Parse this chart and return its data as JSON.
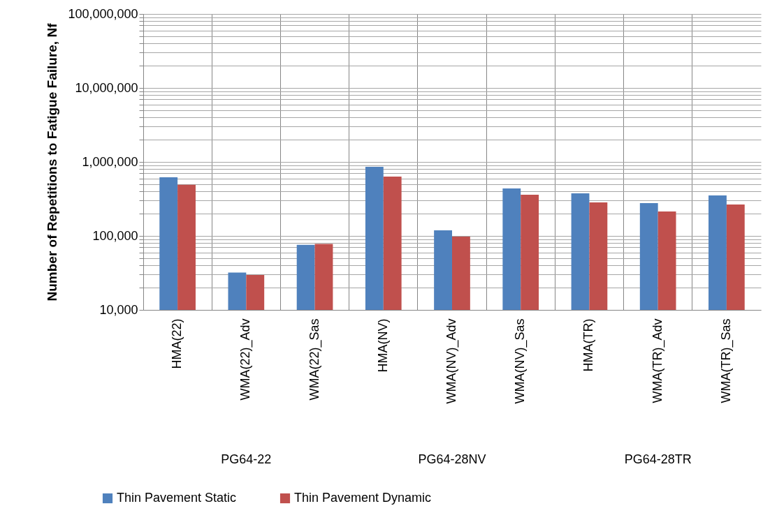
{
  "chart_data": {
    "type": "bar",
    "ylabel": "Number of Repetitions to Fatigue Failure, Nf",
    "categories": [
      "HMA(22)",
      "WMA(22)_Adv",
      "WMA(22)_Sas",
      "HMA(NV)",
      "WMA(NV)_Adv",
      "WMA(NV)_Sas",
      "HMA(TR)",
      "WMA(TR)_Adv",
      "WMA(TR)_Sas"
    ],
    "series": [
      {
        "name": "Thin Pavement Static",
        "color": "#4f81bd",
        "values": [
          620000,
          32000,
          76000,
          860000,
          119000,
          438000,
          376000,
          277000,
          352000
        ]
      },
      {
        "name": "Thin Pavement Dynamic",
        "color": "#c0504d",
        "values": [
          490000,
          29600,
          78000,
          634000,
          98000,
          360000,
          284000,
          214000,
          266000
        ]
      }
    ],
    "annotations": [
      "PG64-22",
      "PG64-28NV",
      "PG64-28TR"
    ],
    "log": true,
    "ylim": [
      10000,
      100000000
    ],
    "yticks": [
      {
        "value": 10000,
        "label": "10,000"
      },
      {
        "value": 20000,
        "label": null
      },
      {
        "value": 30000,
        "label": null
      },
      {
        "value": 40000,
        "label": null
      },
      {
        "value": 50000,
        "label": null
      },
      {
        "value": 60000,
        "label": null
      },
      {
        "value": 70000,
        "label": null
      },
      {
        "value": 80000,
        "label": null
      },
      {
        "value": 90000,
        "label": null
      },
      {
        "value": 100000,
        "label": "100,000"
      },
      {
        "value": 200000,
        "label": null
      },
      {
        "value": 300000,
        "label": null
      },
      {
        "value": 400000,
        "label": null
      },
      {
        "value": 500000,
        "label": null
      },
      {
        "value": 600000,
        "label": null
      },
      {
        "value": 700000,
        "label": null
      },
      {
        "value": 800000,
        "label": null
      },
      {
        "value": 900000,
        "label": null
      },
      {
        "value": 1000000,
        "label": "1,000,000"
      },
      {
        "value": 2000000,
        "label": null
      },
      {
        "value": 3000000,
        "label": null
      },
      {
        "value": 4000000,
        "label": null
      },
      {
        "value": 5000000,
        "label": null
      },
      {
        "value": 6000000,
        "label": null
      },
      {
        "value": 7000000,
        "label": null
      },
      {
        "value": 8000000,
        "label": null
      },
      {
        "value": 9000000,
        "label": null
      },
      {
        "value": 10000000,
        "label": "10,000,000"
      },
      {
        "value": 20000000,
        "label": null
      },
      {
        "value": 30000000,
        "label": null
      },
      {
        "value": 40000000,
        "label": null
      },
      {
        "value": 50000000,
        "label": null
      },
      {
        "value": 60000000,
        "label": null
      },
      {
        "value": 70000000,
        "label": null
      },
      {
        "value": 80000000,
        "label": null
      },
      {
        "value": 90000000,
        "label": null
      },
      {
        "value": 100000000,
        "label": "100,000,000"
      }
    ],
    "grid": true,
    "legend": "bottom"
  }
}
